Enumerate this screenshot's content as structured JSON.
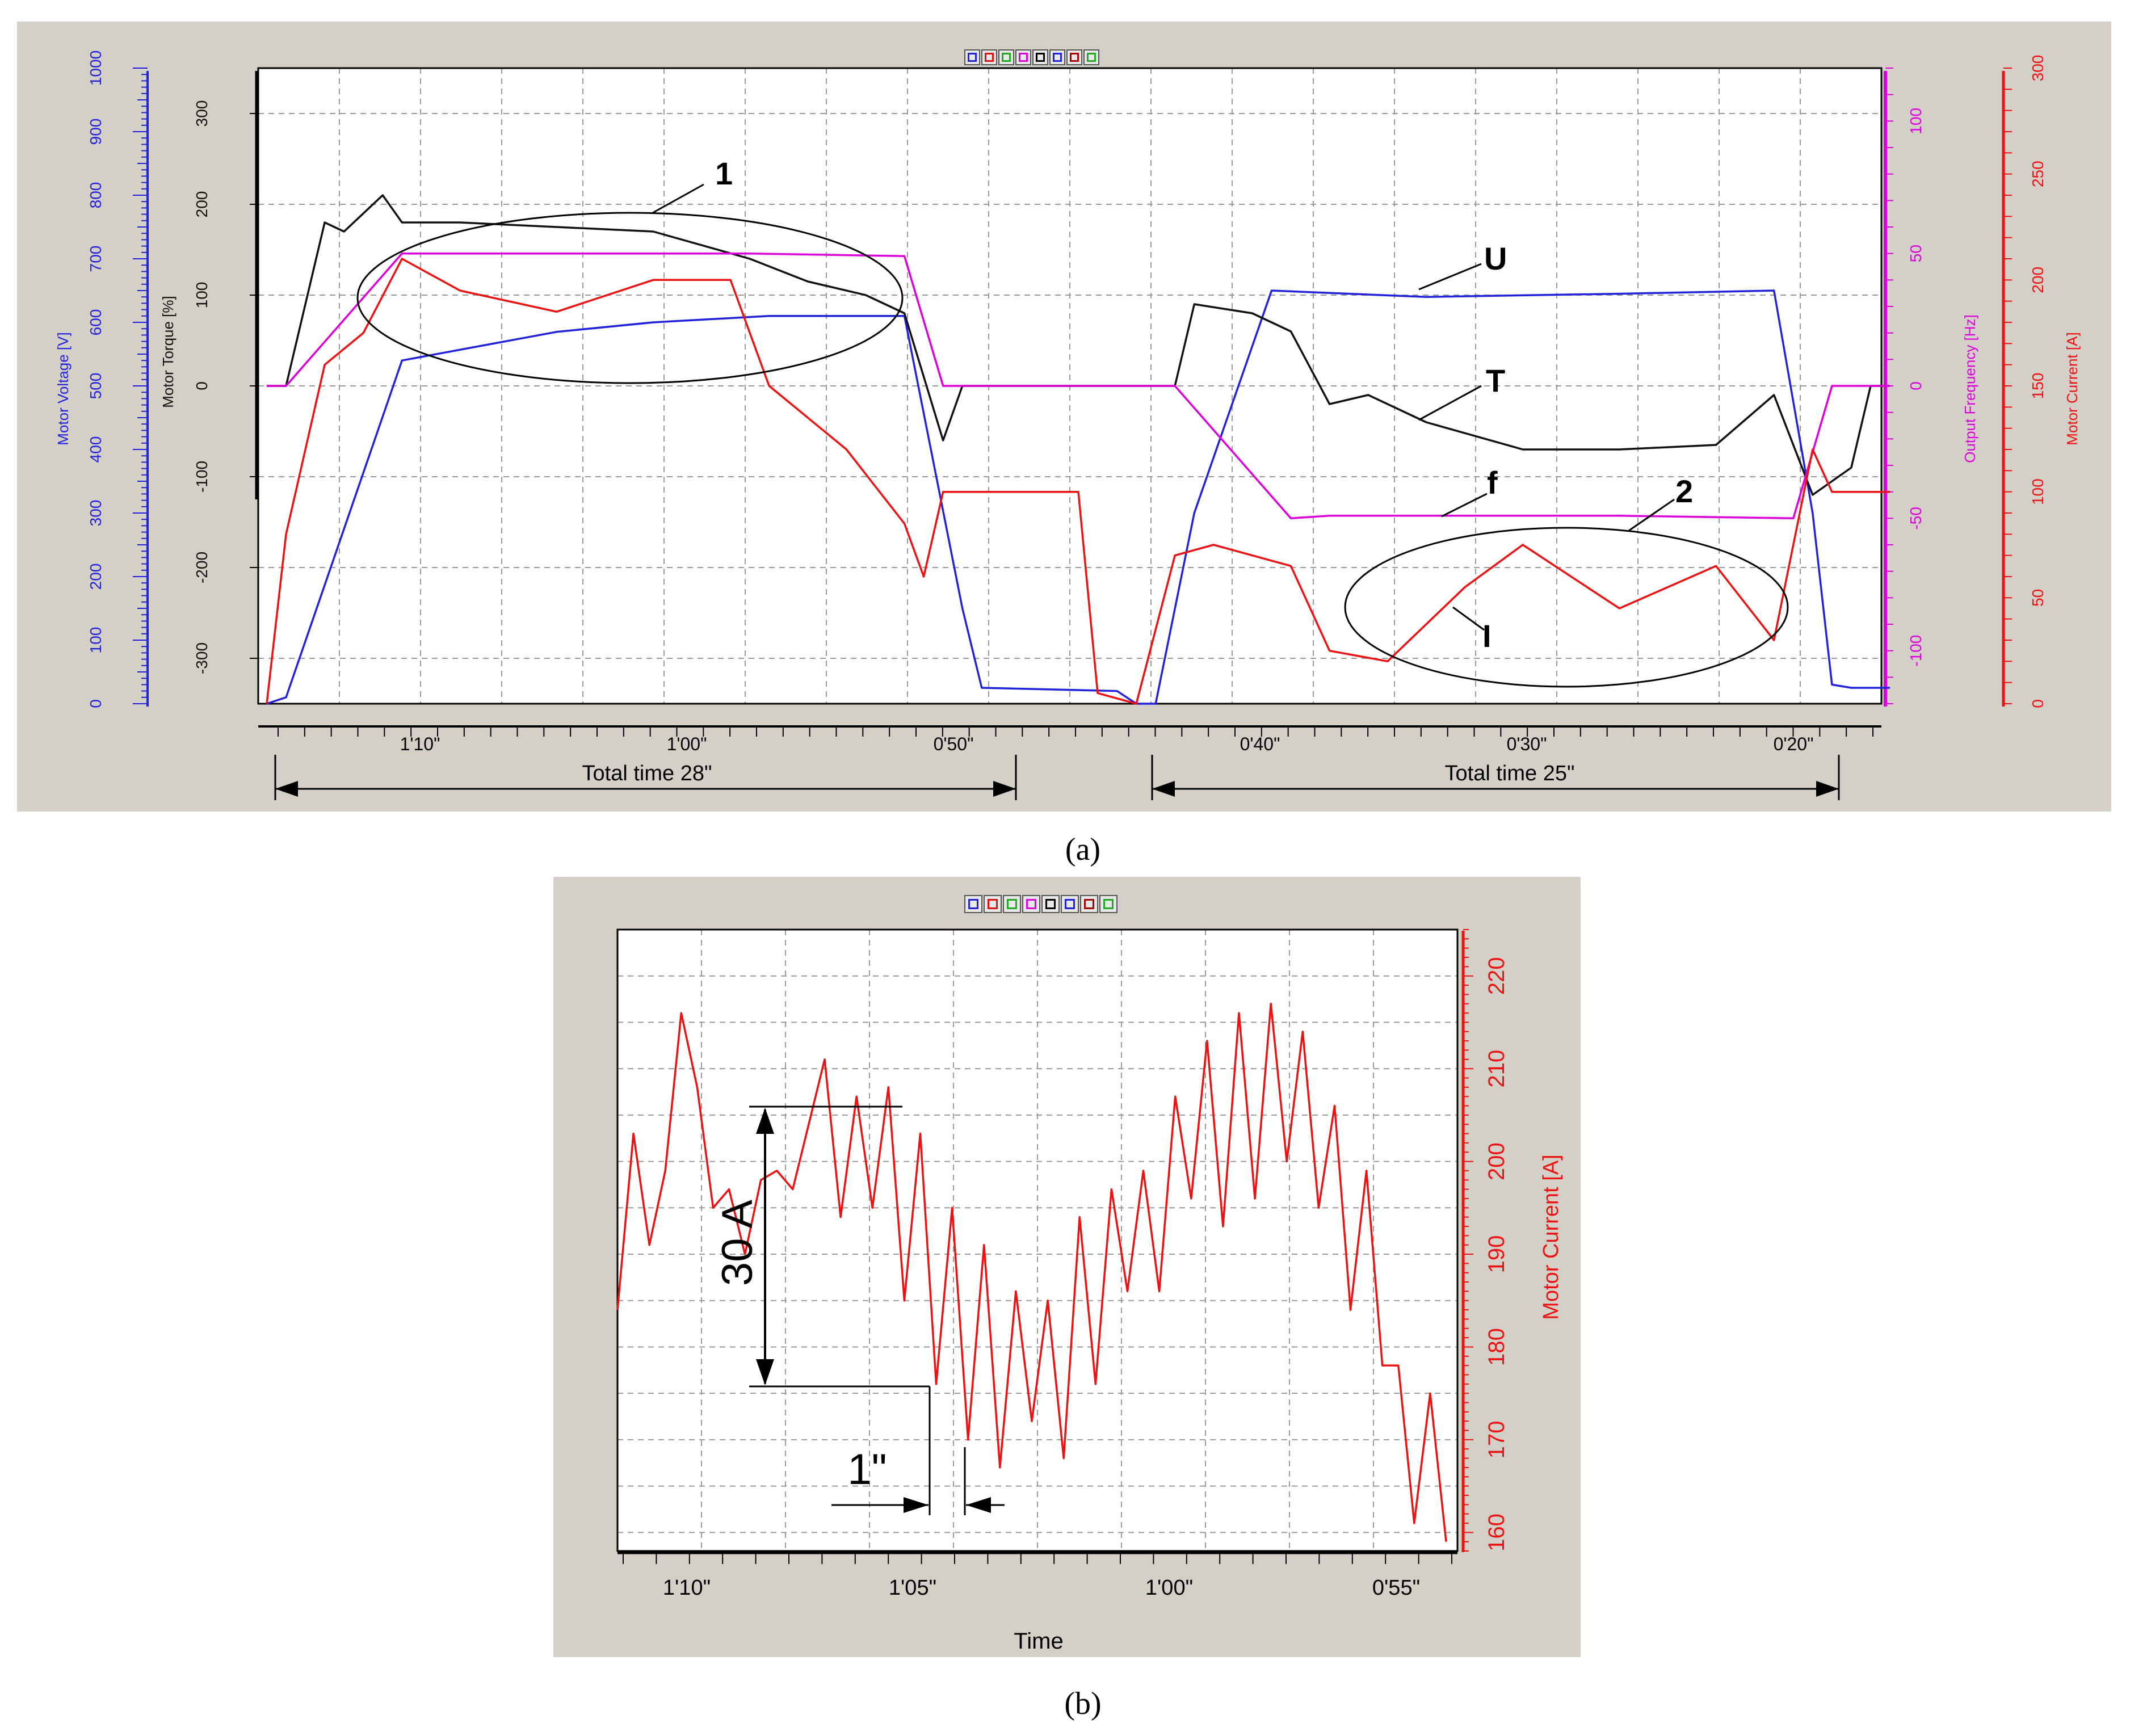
{
  "toolbar": {
    "a_icons": [
      "triangle-icon",
      "square-icon",
      "diamond-icon",
      "step-icon",
      "grid-icon",
      "cross-icon",
      "asterisk-icon",
      "green-square-icon"
    ],
    "b_icons": [
      "triangle-icon",
      "square-icon",
      "diamond-icon",
      "step-icon",
      "plus-icon",
      "cross-icon",
      "asterisk-icon",
      "green-square-icon"
    ]
  },
  "panel_a": {
    "caption": "(a)",
    "axes": {
      "voltage": {
        "label": "Motor Voltage [V]",
        "ticks": [
          "0",
          "100",
          "200",
          "300",
          "400",
          "500",
          "600",
          "700",
          "800",
          "900",
          "1000"
        ],
        "color": "#2222dd"
      },
      "torque": {
        "label": "Motor Torque [%]",
        "ticks": [
          "-300",
          "-200",
          "-100",
          "0",
          "100",
          "200",
          "300"
        ],
        "color": "#111111"
      },
      "frequency": {
        "label": "Output Frequency [Hz]",
        "ticks": [
          "-100",
          "-50",
          "0",
          "50",
          "100"
        ],
        "color": "#dd00dd"
      },
      "current": {
        "label": "Motor Current [A]",
        "ticks": [
          "0",
          "50",
          "100",
          "150",
          "200",
          "250",
          "300"
        ],
        "color": "#ee1111"
      }
    },
    "x_ticks": [
      "1'10\"",
      "1'00\"",
      "0'50\"",
      "0'40\"",
      "0'30\"",
      "0'20\""
    ],
    "annotations": {
      "ellipse1": "1",
      "ellipse2": "2",
      "U": "U",
      "T": "T",
      "f": "f",
      "I": "I"
    },
    "total_time_1": "Total time 28\"",
    "total_time_2": "Total time 25\""
  },
  "panel_b": {
    "caption": "(b)",
    "y_label": "Motor Current [A]",
    "y_ticks": [
      "160",
      "170",
      "180",
      "190",
      "200",
      "210",
      "220"
    ],
    "x_label": "Time",
    "x_ticks": [
      "1'10\"",
      "1'05\"",
      "1'00\"",
      "0'55\""
    ],
    "amplitude_label": "30 A",
    "period_label": "1\""
  },
  "chart_data": [
    {
      "type": "line",
      "panel": "a",
      "x_unit": "elapsed seconds",
      "series": [
        {
          "name": "U",
          "color": "#2222dd",
          "axis": "Motor Voltage [V]",
          "points": [
            [
              0,
              0
            ],
            [
              1,
              10
            ],
            [
              7,
              540
            ],
            [
              15,
              585
            ],
            [
              20,
              600
            ],
            [
              26,
              610
            ],
            [
              33,
              610
            ],
            [
              36,
              150
            ],
            [
              37,
              25
            ],
            [
              44,
              20
            ],
            [
              45,
              0
            ],
            [
              46,
              0
            ],
            [
              48,
              300
            ],
            [
              52,
              650
            ],
            [
              60,
              640
            ],
            [
              70,
              645
            ],
            [
              78,
              650
            ],
            [
              80,
              300
            ],
            [
              81,
              30
            ],
            [
              82,
              25
            ],
            [
              84,
              25
            ]
          ]
        },
        {
          "name": "T",
          "color": "#111111",
          "axis": "Motor Torque [%]",
          "points": [
            [
              0,
              0
            ],
            [
              1,
              0
            ],
            [
              3,
              180
            ],
            [
              4,
              170
            ],
            [
              6,
              210
            ],
            [
              7,
              180
            ],
            [
              10,
              180
            ],
            [
              15,
              175
            ],
            [
              20,
              170
            ],
            [
              25,
              140
            ],
            [
              28,
              115
            ],
            [
              31,
              100
            ],
            [
              33,
              80
            ],
            [
              35,
              -60
            ],
            [
              36,
              0
            ],
            [
              44,
              0
            ],
            [
              47,
              0
            ],
            [
              48,
              90
            ],
            [
              51,
              80
            ],
            [
              53,
              60
            ],
            [
              55,
              -20
            ],
            [
              57,
              -10
            ],
            [
              60,
              -40
            ],
            [
              65,
              -70
            ],
            [
              70,
              -70
            ],
            [
              75,
              -65
            ],
            [
              78,
              -10
            ],
            [
              80,
              -120
            ],
            [
              82,
              -90
            ],
            [
              83,
              0
            ],
            [
              84,
              0
            ]
          ]
        },
        {
          "name": "f",
          "color": "#dd00dd",
          "axis": "Output Frequency [Hz]",
          "points": [
            [
              0,
              0
            ],
            [
              1,
              0
            ],
            [
              7,
              50
            ],
            [
              15,
              50
            ],
            [
              25,
              50
            ],
            [
              33,
              49
            ],
            [
              35,
              0
            ],
            [
              45,
              0
            ],
            [
              47,
              0
            ],
            [
              53,
              -50
            ],
            [
              55,
              -49
            ],
            [
              70,
              -49
            ],
            [
              79,
              -50
            ],
            [
              81,
              0
            ],
            [
              84,
              0
            ]
          ]
        },
        {
          "name": "I",
          "color": "#ee1111",
          "axis": "Motor Current [A]",
          "points": [
            [
              0,
              0
            ],
            [
              1,
              80
            ],
            [
              3,
              160
            ],
            [
              5,
              175
            ],
            [
              7,
              210
            ],
            [
              10,
              195
            ],
            [
              15,
              185
            ],
            [
              20,
              200
            ],
            [
              24,
              200
            ],
            [
              26,
              150
            ],
            [
              30,
              120
            ],
            [
              33,
              85
            ],
            [
              34,
              60
            ],
            [
              35,
              100
            ],
            [
              36,
              100
            ],
            [
              42,
              100
            ],
            [
              43,
              5
            ],
            [
              45,
              0
            ],
            [
              47,
              70
            ],
            [
              49,
              75
            ],
            [
              53,
              65
            ],
            [
              55,
              25
            ],
            [
              58,
              20
            ],
            [
              62,
              55
            ],
            [
              65,
              75
            ],
            [
              70,
              45
            ],
            [
              75,
              65
            ],
            [
              78,
              30
            ],
            [
              80,
              120
            ],
            [
              81,
              100
            ],
            [
              84,
              100
            ]
          ]
        }
      ]
    },
    {
      "type": "line",
      "panel": "b",
      "x_unit": "seconds (elapsed time display)",
      "series": [
        {
          "name": "Motor Current",
          "color": "#ee1111",
          "points": [
            [
              0,
              184
            ],
            [
              0.4,
              203
            ],
            [
              0.8,
              191
            ],
            [
              1.2,
              199
            ],
            [
              1.6,
              216
            ],
            [
              2.0,
              208
            ],
            [
              2.4,
              195
            ],
            [
              2.8,
              197
            ],
            [
              3.2,
              190
            ],
            [
              3.6,
              198
            ],
            [
              4.0,
              199
            ],
            [
              4.4,
              197
            ],
            [
              4.8,
              204
            ],
            [
              5.2,
              211
            ],
            [
              5.6,
              194
            ],
            [
              6.0,
              207
            ],
            [
              6.4,
              195
            ],
            [
              6.8,
              208
            ],
            [
              7.2,
              185
            ],
            [
              7.6,
              203
            ],
            [
              8.0,
              176
            ],
            [
              8.4,
              195
            ],
            [
              8.8,
              170
            ],
            [
              9.2,
              191
            ],
            [
              9.6,
              167
            ],
            [
              10.0,
              186
            ],
            [
              10.4,
              172
            ],
            [
              10.8,
              185
            ],
            [
              11.2,
              168
            ],
            [
              11.6,
              194
            ],
            [
              12.0,
              176
            ],
            [
              12.4,
              197
            ],
            [
              12.8,
              186
            ],
            [
              13.2,
              199
            ],
            [
              13.6,
              186
            ],
            [
              14.0,
              207
            ],
            [
              14.4,
              196
            ],
            [
              14.8,
              213
            ],
            [
              15.2,
              193
            ],
            [
              15.6,
              216
            ],
            [
              16.0,
              196
            ],
            [
              16.4,
              217
            ],
            [
              16.8,
              200
            ],
            [
              17.2,
              214
            ],
            [
              17.6,
              195
            ],
            [
              18.0,
              206
            ],
            [
              18.4,
              184
            ],
            [
              18.8,
              199
            ],
            [
              19.2,
              178
            ],
            [
              19.6,
              178
            ],
            [
              20.0,
              161
            ],
            [
              20.4,
              175
            ],
            [
              20.8,
              159
            ]
          ]
        }
      ]
    }
  ]
}
